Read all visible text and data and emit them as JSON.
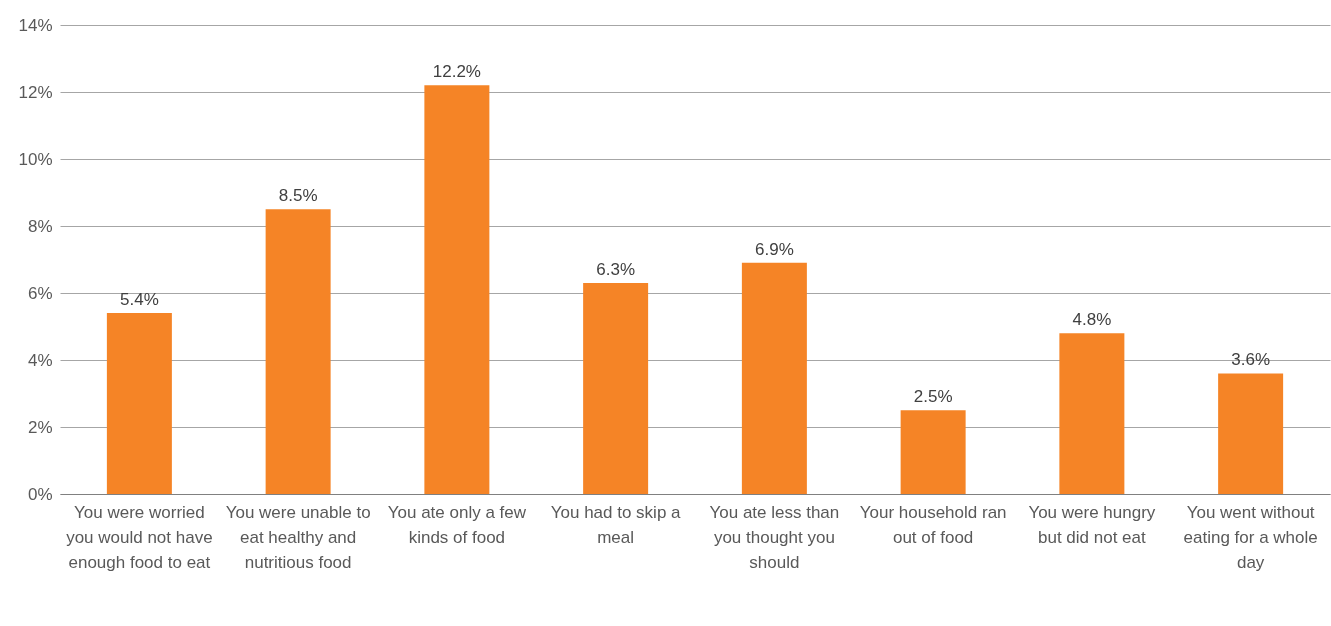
{
  "chart_data": {
    "type": "bar",
    "categories": [
      "You were worried you would not have enough food to eat",
      "You were unable to eat healthy and nutritious food",
      "You ate only a few kinds of food",
      "You had to skip a meal",
      "You ate less than you thought you should",
      "Your household ran out of food",
      "You were hungry but did not eat",
      "You went without eating for a whole day"
    ],
    "values": [
      5.4,
      8.5,
      12.2,
      6.3,
      6.9,
      2.5,
      4.8,
      3.6
    ],
    "value_labels": [
      "5.4%",
      "8.5%",
      "12.2%",
      "6.3%",
      "6.9%",
      "2.5%",
      "4.8%",
      "3.6%"
    ],
    "color": "#f58426",
    "ylim": [
      0,
      14
    ],
    "yticks": [
      {
        "value": 0,
        "label": "0%"
      },
      {
        "value": 2,
        "label": "2%"
      },
      {
        "value": 4,
        "label": "4%"
      },
      {
        "value": 6,
        "label": "6%"
      },
      {
        "value": 8,
        "label": "8%"
      },
      {
        "value": 10,
        "label": "10%"
      },
      {
        "value": 12,
        "label": "12%"
      },
      {
        "value": 14,
        "label": "14%"
      }
    ],
    "grid": "y"
  }
}
